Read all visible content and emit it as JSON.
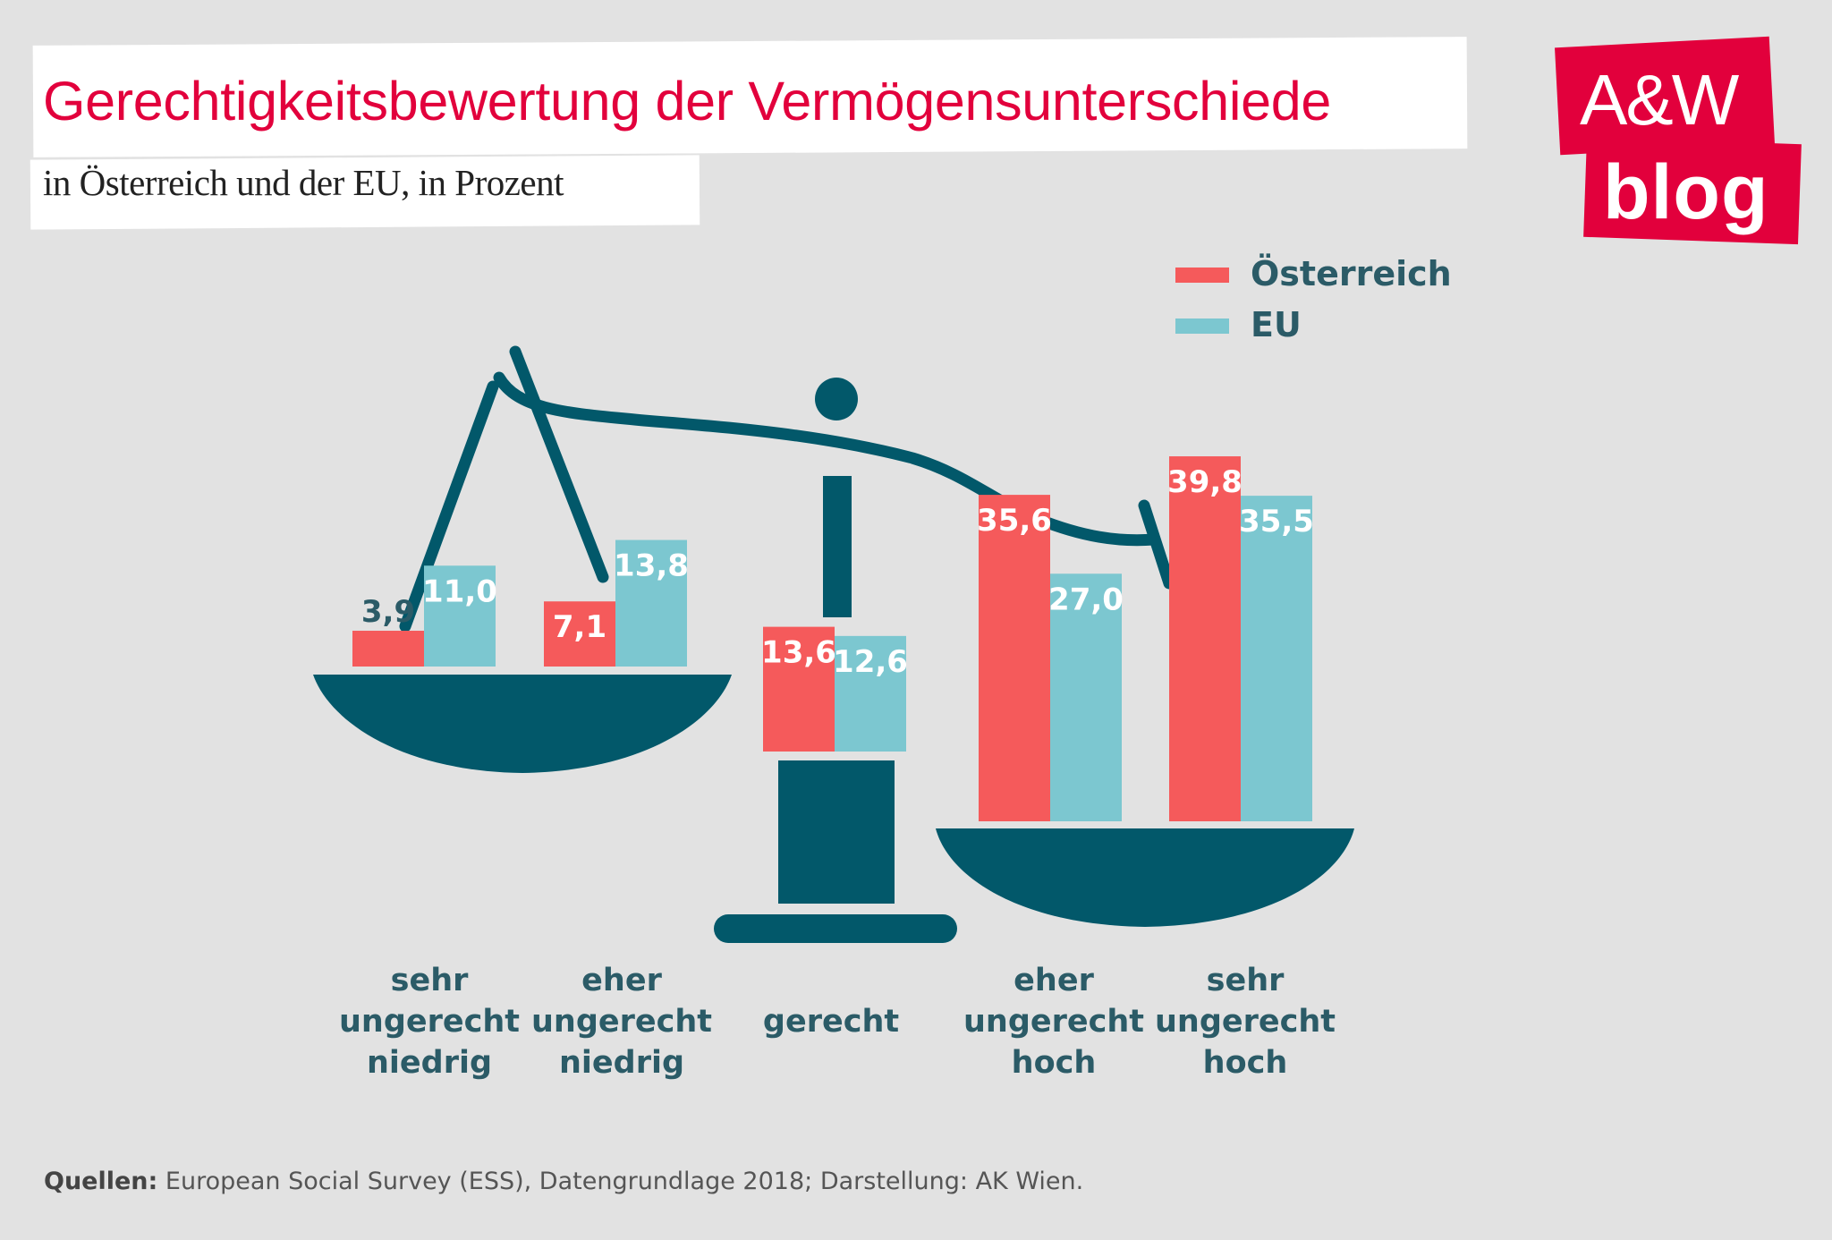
{
  "header": {
    "title": "Gerechtigkeitsbewertung der Vermögensunterschiede",
    "subtitle": "in Österreich und der EU, in Prozent"
  },
  "logo": {
    "line1": "A&W",
    "line2": "blog"
  },
  "footer": {
    "label": "Quellen:",
    "text": " European Social Survey (ESS), Datengrundlage 2018; Darstellung: AK Wien."
  },
  "colors": {
    "oesterreich": "#f55a5b",
    "eu": "#7cc7d0",
    "scale": "#02586a",
    "label_dark": "#2b5b67",
    "label_light": "#ffffff",
    "brand": "#e2003c"
  },
  "chart_data": {
    "type": "bar",
    "title": "Gerechtigkeitsbewertung der Vermögensunterschiede",
    "subtitle": "in Österreich und der EU, in Prozent",
    "categories": [
      "sehr\nungerecht\nniedrig",
      "eher\nungerecht\nniedrig",
      "gerecht",
      "eher\nungerecht\nhoch",
      "sehr\nungerecht\nhoch"
    ],
    "series": [
      {
        "name": "Österreich",
        "values": [
          3.9,
          7.1,
          13.6,
          35.6,
          39.8
        ],
        "labels": [
          "3,9",
          "7,1",
          "13,6",
          "35,6",
          "39,8"
        ]
      },
      {
        "name": "EU",
        "values": [
          11.0,
          13.8,
          12.6,
          27.0,
          35.5
        ],
        "labels": [
          "11,0",
          "13,8",
          "12,6",
          "27,0",
          "35,5"
        ]
      }
    ],
    "legend": "top-right",
    "grid": false
  }
}
